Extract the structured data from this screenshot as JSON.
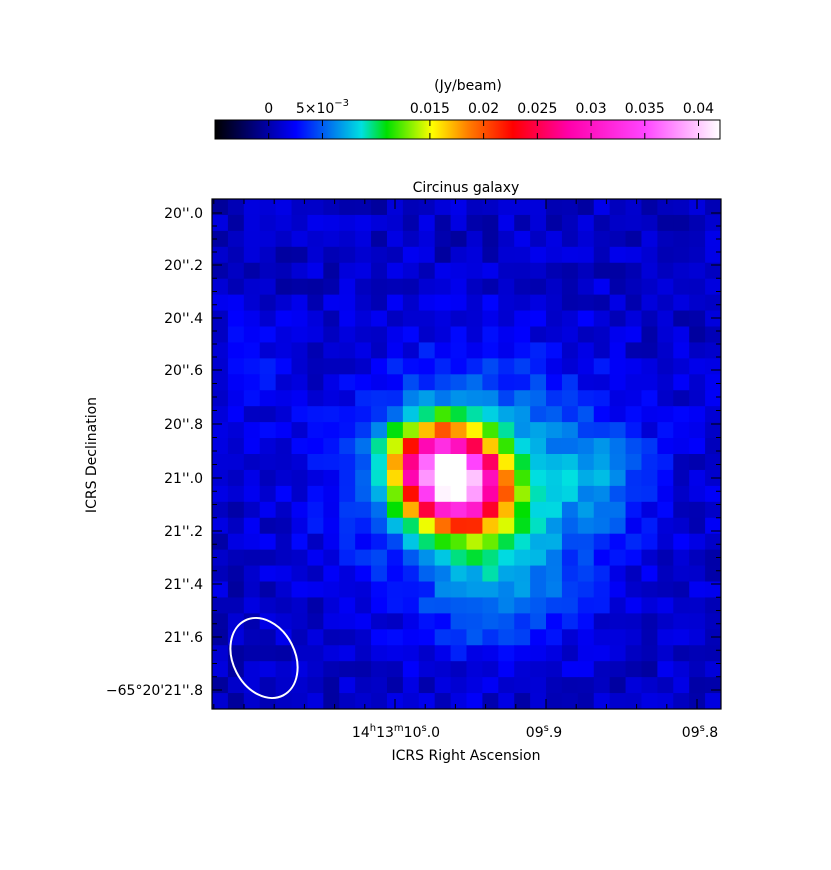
{
  "chart_data": {
    "type": "heatmap",
    "title": "Circinus galaxy",
    "xlabel": "ICRS Right Ascension",
    "ylabel": "ICRS Declination",
    "x_ticks": [
      {
        "h": "14",
        "m": "13",
        "s": "10",
        "frac": ".0"
      },
      {
        "h": "",
        "m": "",
        "s": "09",
        "frac": ".9"
      },
      {
        "h": "",
        "m": "",
        "s": "09",
        "frac": ".8"
      }
    ],
    "y_ticks": [
      {
        "prefix": "",
        "sec": "20",
        "frac": ".0"
      },
      {
        "prefix": "",
        "sec": "20",
        "frac": ".2"
      },
      {
        "prefix": "",
        "sec": "20",
        "frac": ".4"
      },
      {
        "prefix": "",
        "sec": "20",
        "frac": ".6"
      },
      {
        "prefix": "",
        "sec": "20",
        "frac": ".8"
      },
      {
        "prefix": "",
        "sec": "21",
        "frac": ".0"
      },
      {
        "prefix": "",
        "sec": "21",
        "frac": ".2"
      },
      {
        "prefix": "",
        "sec": "21",
        "frac": ".4"
      },
      {
        "prefix": "",
        "sec": "21",
        "frac": ".6"
      },
      {
        "prefix": "−65°20'",
        "sec": "21",
        "frac": ".8"
      }
    ],
    "y_tick_values": [
      20.0,
      20.2,
      20.4,
      20.6,
      20.8,
      21.0,
      21.2,
      21.4,
      21.6,
      21.8
    ],
    "x_tick_values": [
      0.0,
      0.1,
      0.2
    ],
    "colorbar": {
      "label": "(Jy/beam)",
      "range": [
        -0.005,
        0.042
      ],
      "ticks": [
        {
          "value": 0,
          "text": "0",
          "exp": ""
        },
        {
          "value": 0.005,
          "text": "5×10",
          "exp": "−3"
        },
        {
          "value": 0.015,
          "text": "0.015",
          "exp": ""
        },
        {
          "value": 0.02,
          "text": "0.02",
          "exp": ""
        },
        {
          "value": 0.025,
          "text": "0.025",
          "exp": ""
        },
        {
          "value": 0.03,
          "text": "0.03",
          "exp": ""
        },
        {
          "value": 0.035,
          "text": "0.035",
          "exp": ""
        },
        {
          "value": 0.04,
          "text": "0.04",
          "exp": ""
        }
      ]
    },
    "grid_cols": 32,
    "grid_rows": 32,
    "vmin": -0.005,
    "vmax": 0.042,
    "source": {
      "col": 14.5,
      "row": 17.0,
      "peak": 0.041
    },
    "beam": {
      "shape": "ellipse",
      "color": "#ffffff"
    }
  }
}
